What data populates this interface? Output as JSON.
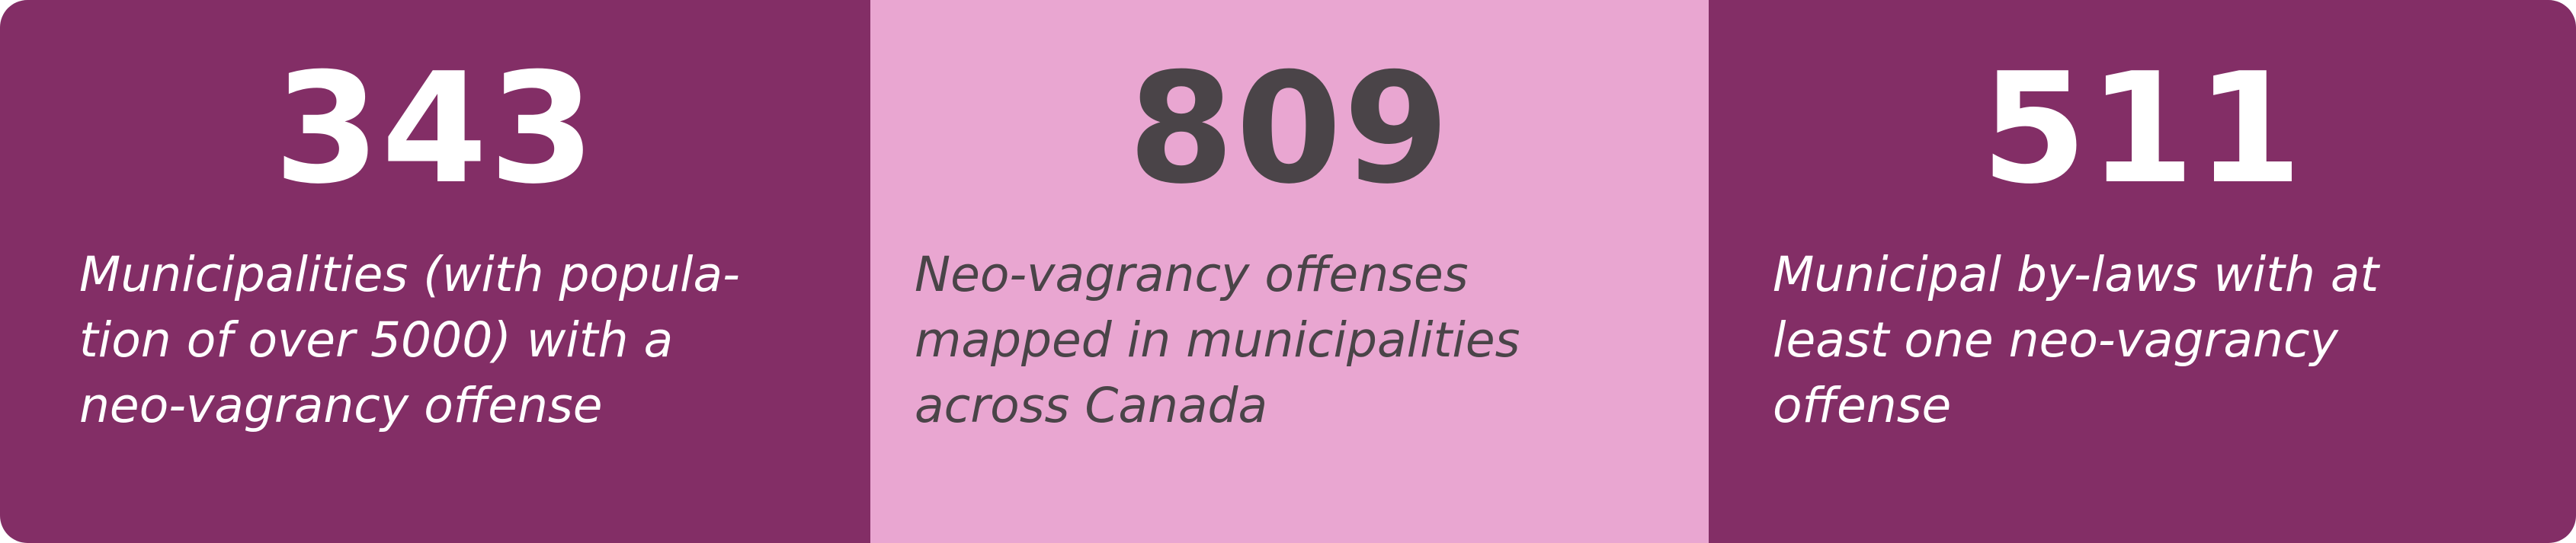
{
  "colors": {
    "dark_panel": "#832e66",
    "light_panel": "#e9a6d1",
    "light_text": "#ffffff",
    "dark_text": "#4a4448"
  },
  "stats": [
    {
      "number": "343",
      "description": "Municipalities (with popula-\ntion of over 5000) with a\nneo-vagrancy offense"
    },
    {
      "number": "809",
      "description": "Neo-vagrancy offenses\nmapped in municipalities\nacross Canada"
    },
    {
      "number": "511",
      "description": "Municipal by-laws with at\nleast one neo-vagrancy\noffense"
    }
  ]
}
